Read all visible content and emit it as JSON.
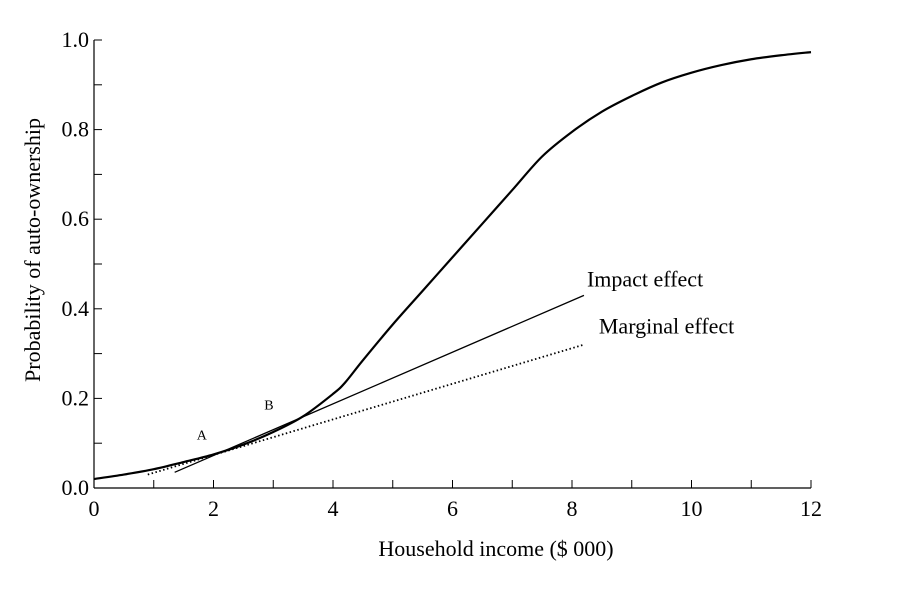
{
  "chart_data": {
    "type": "line",
    "title": "",
    "xlabel": "Household income ($ 000)",
    "ylabel": "Probability of auto-ownership",
    "xlim": [
      0,
      12
    ],
    "ylim": [
      0,
      1.0
    ],
    "x_ticks": [
      0,
      2,
      4,
      6,
      8,
      10,
      12
    ],
    "x_tick_labels": [
      "0",
      "2",
      "4",
      "6",
      "8",
      "10",
      "12"
    ],
    "x_minor_ticks": [
      1,
      3,
      5,
      7,
      9,
      11
    ],
    "y_ticks": [
      0.0,
      0.2,
      0.4,
      0.6,
      0.8,
      1.0
    ],
    "y_tick_labels": [
      "0.0",
      "0.2",
      "0.4",
      "0.6",
      "0.8",
      "1.0"
    ],
    "y_minor_ticks": [
      0.1,
      0.3,
      0.5,
      0.7,
      0.9
    ],
    "grid": false,
    "series": [
      {
        "style": "solid",
        "x": [
          0,
          0.5,
          1.0,
          1.5,
          2.0,
          2.5,
          3.0,
          3.5,
          4.0,
          4.2,
          4.5,
          5.0,
          5.5,
          6.0,
          6.5,
          7.0,
          7.5,
          8.0,
          8.5,
          9.0,
          9.5,
          10.0,
          10.5,
          11.0,
          11.5,
          12.0
        ],
        "y": [
          0.02,
          0.03,
          0.042,
          0.058,
          0.075,
          0.097,
          0.125,
          0.16,
          0.21,
          0.235,
          0.285,
          0.365,
          0.44,
          0.515,
          0.59,
          0.665,
          0.74,
          0.795,
          0.84,
          0.875,
          0.905,
          0.927,
          0.944,
          0.957,
          0.966,
          0.973
        ]
      },
      {
        "name": "Impact effect",
        "style": "solid",
        "x": [
          1.35,
          8.2
        ],
        "y": [
          0.035,
          0.43
        ]
      },
      {
        "name": "Marginal effect",
        "style": "dotted",
        "x": [
          0.9,
          8.2
        ],
        "y": [
          0.03,
          0.32
        ]
      }
    ],
    "annotations": [
      {
        "text": "Impact effect",
        "x": 8.25,
        "y": 0.45
      },
      {
        "text": "Marginal effect",
        "x": 8.45,
        "y": 0.345
      },
      {
        "text": "A",
        "x": 1.72,
        "y": 0.108
      },
      {
        "text": "B",
        "x": 2.85,
        "y": 0.175
      }
    ]
  }
}
